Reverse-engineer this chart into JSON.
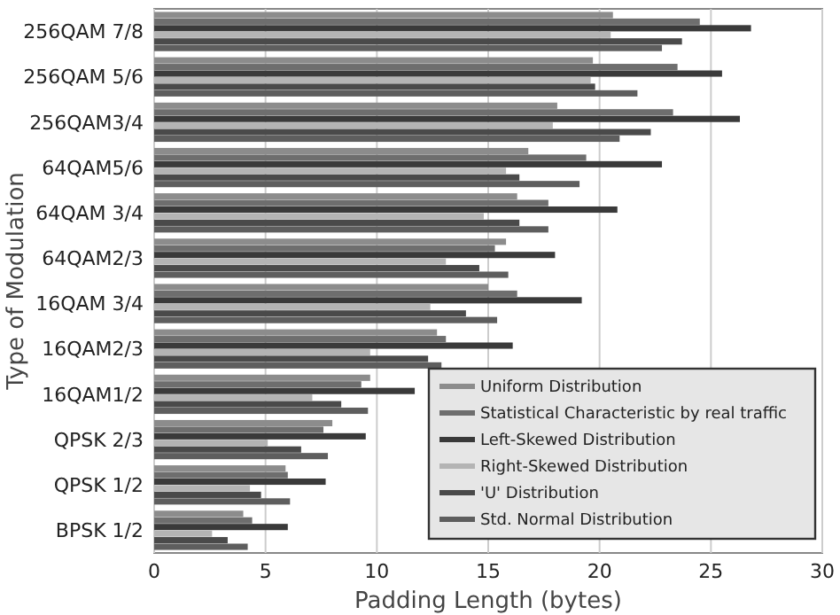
{
  "chart_data": {
    "type": "bar",
    "orientation": "horizontal",
    "xlabel": "Padding Length (bytes)",
    "ylabel": "Type of Modulation",
    "categories": [
      "256QAM 7/8",
      "256QAM 5/6",
      "256QAM3/4",
      "64QAM5/6",
      "64QAM 3/4",
      "64QAM2/3",
      "16QAM 3/4",
      "16QAM2/3",
      "16QAM1/2",
      "QPSK 2/3",
      "QPSK 1/2",
      "BPSK 1/2"
    ],
    "series": [
      {
        "name": "Uniform Distribution",
        "color": "#8c8c8c",
        "values": [
          20.6,
          19.7,
          18.1,
          16.8,
          16.3,
          15.8,
          15.0,
          12.7,
          9.7,
          8.0,
          5.9,
          4.0
        ]
      },
      {
        "name": "Statistical Characteristic by real traffic",
        "color": "#6e6e6e",
        "values": [
          24.5,
          23.5,
          23.3,
          19.4,
          17.7,
          15.3,
          16.3,
          13.1,
          9.3,
          7.6,
          6.0,
          4.4
        ]
      },
      {
        "name": "Left-Skewed Distribution",
        "color": "#3a3a3a",
        "values": [
          26.8,
          25.5,
          26.3,
          22.8,
          20.8,
          18.0,
          19.2,
          16.1,
          11.7,
          9.5,
          7.7,
          6.0
        ]
      },
      {
        "name": "Right-Skewed Distribution",
        "color": "#b4b4b4",
        "values": [
          20.5,
          19.6,
          17.9,
          15.8,
          14.8,
          13.1,
          12.4,
          9.7,
          7.1,
          5.1,
          4.3,
          2.6
        ]
      },
      {
        "name": "'U' Distribution",
        "color": "#4a4a4a",
        "values": [
          23.7,
          19.8,
          22.3,
          16.4,
          16.4,
          14.6,
          14.0,
          12.3,
          8.4,
          6.6,
          4.8,
          3.3
        ]
      },
      {
        "name": "Std. Normal Distribution",
        "color": "#5e5e5e",
        "values": [
          22.8,
          21.7,
          20.9,
          19.1,
          17.7,
          15.9,
          15.4,
          12.9,
          9.6,
          7.8,
          6.1,
          4.2
        ]
      }
    ],
    "xlim": [
      0,
      30
    ],
    "xticks": [
      0,
      5,
      10,
      15,
      20,
      25,
      30
    ],
    "grid": "x",
    "legend": "bottom right"
  }
}
